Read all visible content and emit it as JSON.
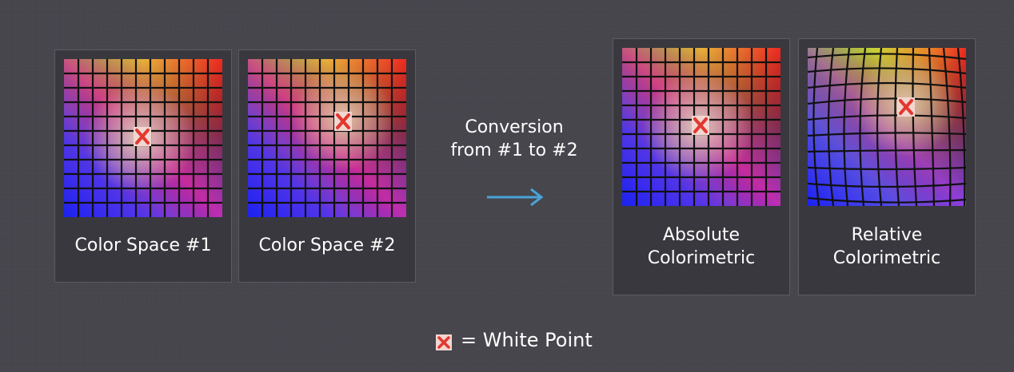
{
  "panels": [
    {
      "label": "Color Space #1",
      "variant": "grid"
    },
    {
      "label": "Color Space #2",
      "variant": "grid"
    },
    {
      "label": "Absolute\nColorimetric",
      "variant": "grid"
    },
    {
      "label": "Relative\nColorimetric",
      "variant": "warped"
    }
  ],
  "conversion": {
    "text": "Conversion\nfrom #1 to #2",
    "arrow_color": "#4aa3d8"
  },
  "legend": {
    "text": "= White Point",
    "marker_icon": "x-marker-icon"
  },
  "colors": {
    "background": "#46454c",
    "panel": "#39383e",
    "marker_fill": "#f2d6d0",
    "marker_stroke": "#e2372f",
    "gradient_top_left": "#55ee33",
    "gradient_top_right": "#ee2a22",
    "gradient_bottom_left": "#3388ff",
    "gradient_bottom_right": "#1a22ee",
    "gradient_center": "#cfc5b5"
  }
}
